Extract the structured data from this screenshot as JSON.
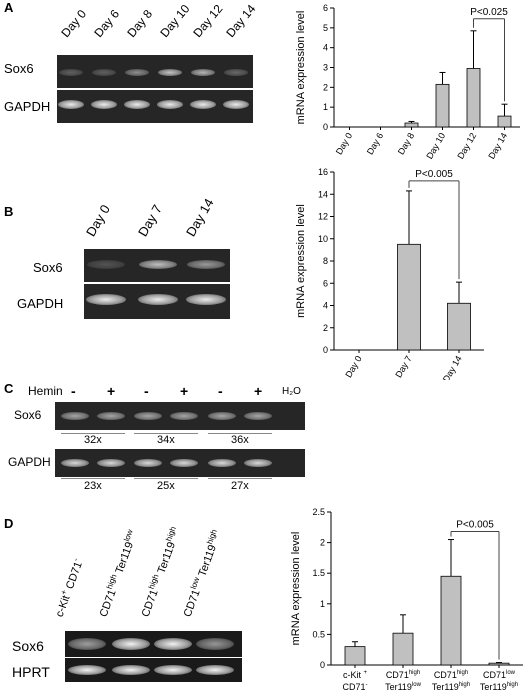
{
  "panels": {
    "A": {
      "letter": "A",
      "lanes": [
        "Day 0",
        "Day 6",
        "Day 8",
        "Day 10",
        "Day 12",
        "Day 14"
      ],
      "rows": [
        "Sox6",
        "GAPDH"
      ],
      "sox6_intensity": [
        0.05,
        0.05,
        0.35,
        0.7,
        0.6,
        0.1
      ]
    },
    "B": {
      "letter": "B",
      "lanes": [
        "Day 0",
        "Day 7",
        "Day 14"
      ],
      "rows": [
        "Sox6",
        "GAPDH"
      ],
      "sox6_intensity": [
        0.05,
        0.75,
        0.5
      ]
    },
    "C": {
      "letter": "C",
      "hemin_label": "Hemin",
      "signs": [
        "-",
        "+",
        "-",
        "+",
        "-",
        "+"
      ],
      "water": "H₂O",
      "rows": [
        "Sox6",
        "GAPDH"
      ],
      "sox6_cycles": [
        "32x",
        "34x",
        "36x"
      ],
      "gapdh_cycles": [
        "23x",
        "25x",
        "27x"
      ]
    },
    "D": {
      "letter": "D",
      "lanes": [
        {
          "a": "c-Kit",
          "a_sup": "+",
          "b": "CD71",
          "b_sup": "-"
        },
        {
          "a": "CD71",
          "a_sup": "high",
          "b": "Ter119",
          "b_sup": "low"
        },
        {
          "a": "CD71",
          "a_sup": "high",
          "b": "Ter119",
          "b_sup": "high"
        },
        {
          "a": "CD71",
          "a_sup": "low",
          "b": "Ter119",
          "b_sup": "high"
        }
      ],
      "rows": [
        "Sox6",
        "HPRT"
      ]
    }
  },
  "chart_data": [
    {
      "type": "bar",
      "panel": "A",
      "ylabel": "mRNA expression level",
      "categories": [
        "Day 0",
        "Day 6",
        "Day 8",
        "Day 10",
        "Day 12",
        "Day 14"
      ],
      "values": [
        0,
        0,
        0.2,
        2.15,
        2.95,
        0.55
      ],
      "errors": [
        0,
        0,
        0.08,
        0.6,
        1.9,
        0.6
      ],
      "ylim": [
        0,
        6
      ],
      "yticks": [
        0,
        1,
        2,
        3,
        4,
        5,
        6
      ],
      "annotation": "P<0.025"
    },
    {
      "type": "bar",
      "panel": "B",
      "ylabel": "mRNA expression level",
      "categories": [
        "Day 0",
        "Day 7",
        "Day 14"
      ],
      "values": [
        0,
        9.5,
        4.2
      ],
      "errors": [
        0,
        4.8,
        1.9
      ],
      "ylim": [
        0,
        16
      ],
      "yticks": [
        0,
        2,
        4,
        6,
        8,
        10,
        12,
        14,
        16
      ],
      "annotation": "P<0.005"
    },
    {
      "type": "bar",
      "panel": "D",
      "ylabel": "mRNA expression level",
      "categories": [
        {
          "l1": "c-Kit ",
          "l1_sup": "+",
          "l2": "CD71",
          "l2_sup": "-"
        },
        {
          "l1": "CD71",
          "l1_sup": "high",
          "l2": "Ter119",
          "l2_sup": "low"
        },
        {
          "l1": "CD71",
          "l1_sup": "high",
          "l2": "Ter119",
          "l2_sup": "high"
        },
        {
          "l1": "CD71",
          "l1_sup": "low",
          "l2": "Ter119",
          "l2_sup": "high"
        }
      ],
      "values": [
        0.3,
        0.52,
        1.45,
        0.03
      ],
      "errors": [
        0.08,
        0.3,
        0.6,
        0.01
      ],
      "ylim": [
        0,
        2.5
      ],
      "yticks": [
        0,
        0.5,
        1,
        1.5,
        2,
        2.5
      ],
      "annotation": "P<0.005"
    }
  ]
}
